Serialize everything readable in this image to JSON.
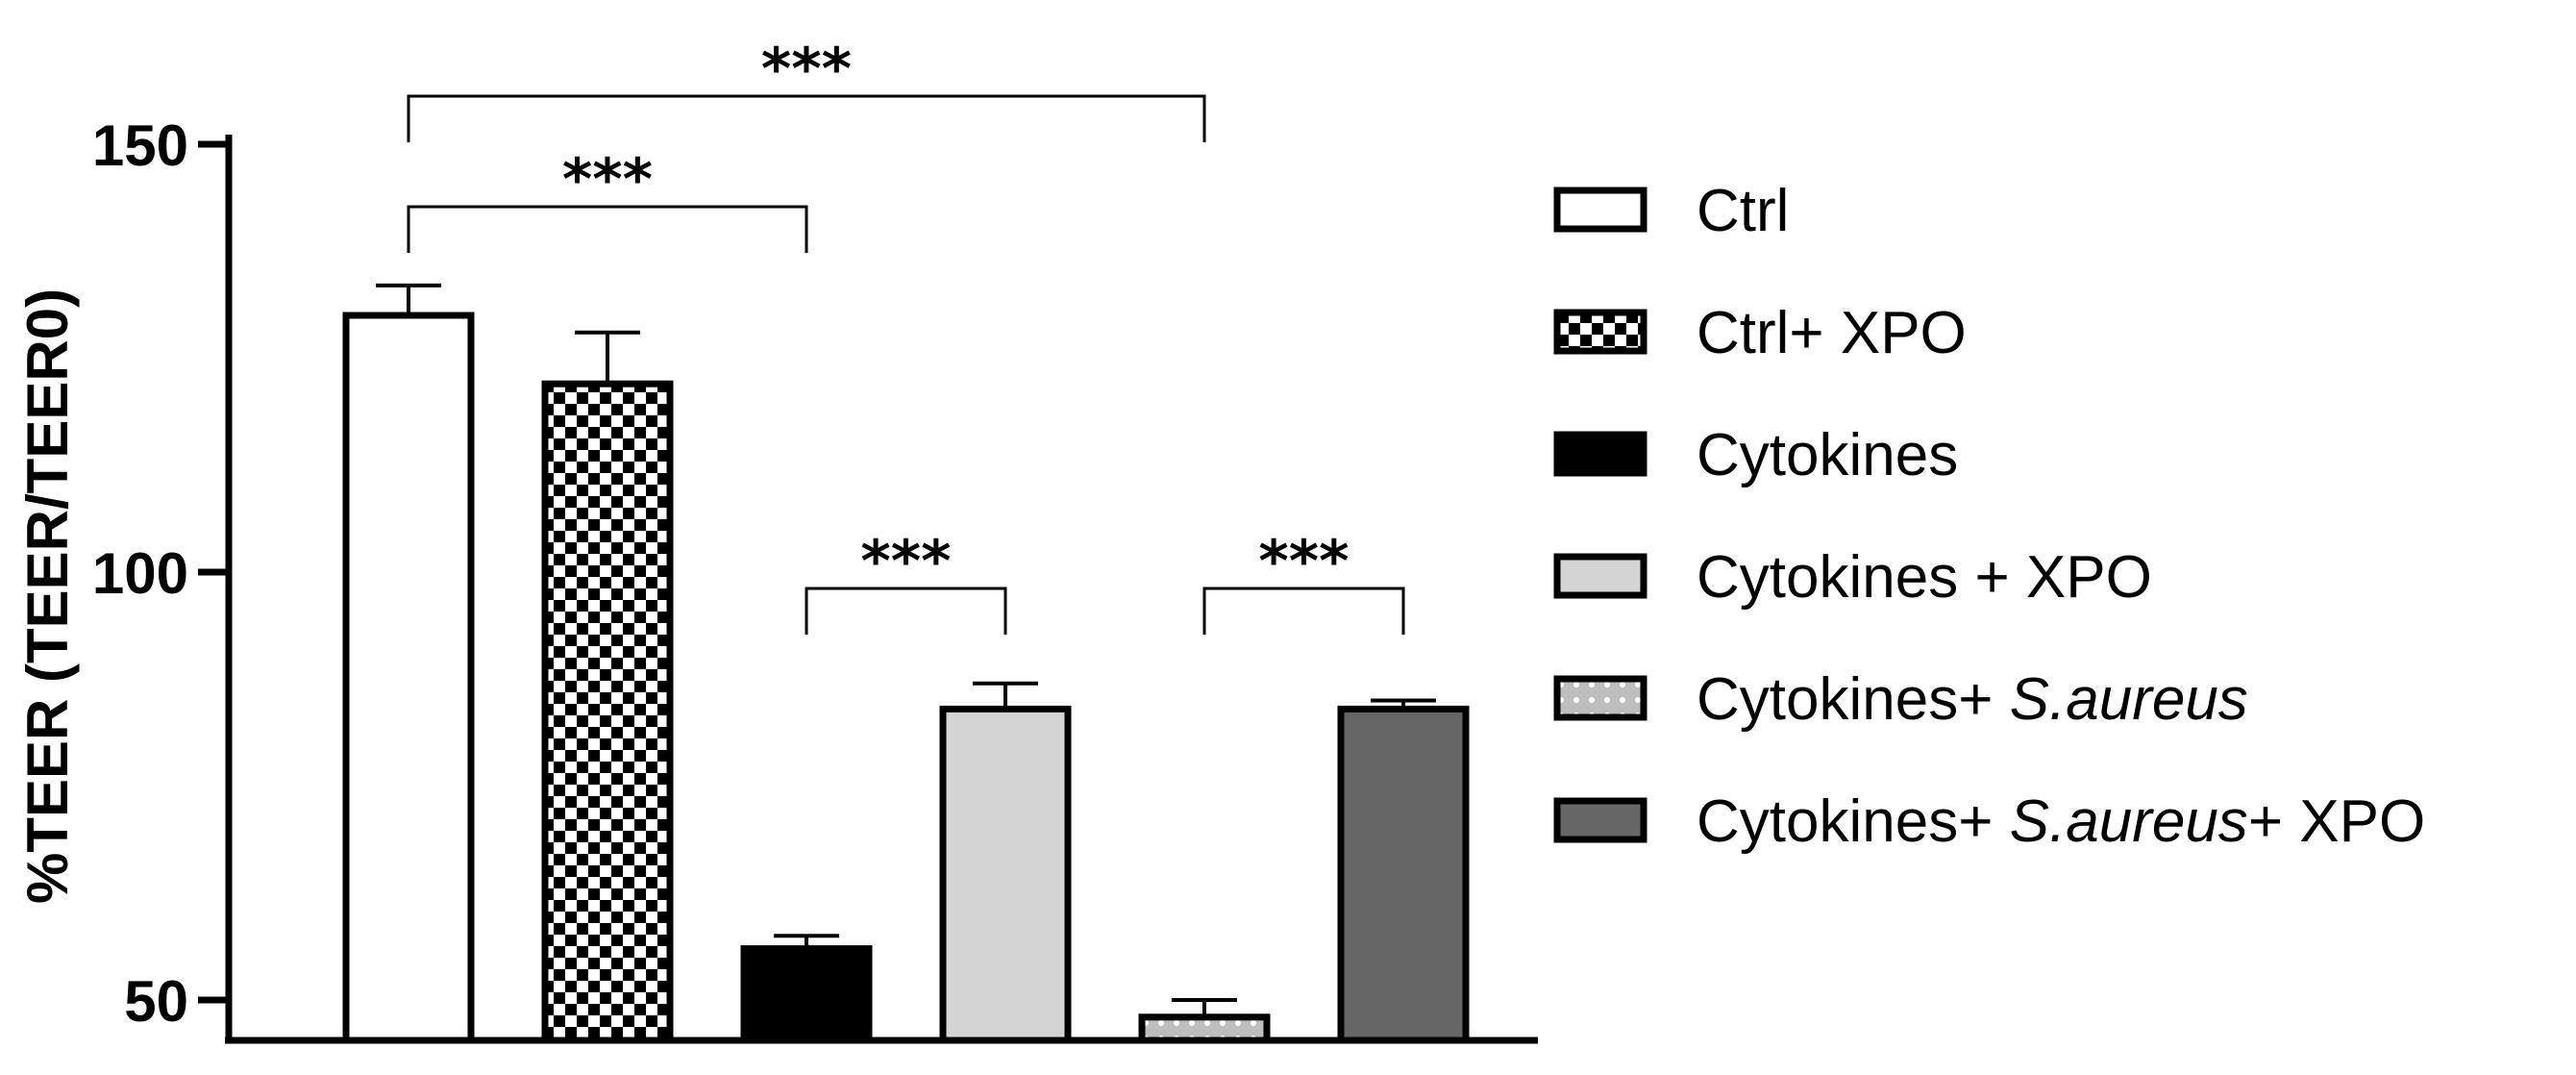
{
  "chart_data": {
    "type": "bar",
    "title": "",
    "xlabel": "",
    "ylabel": "%TEER (TEER/TEER0)",
    "ylim": [
      45,
      150
    ],
    "yticks": [
      50,
      100,
      150
    ],
    "grid": false,
    "legend_position": "right",
    "categories": [
      "Ctrl",
      "Ctrl+ XPO",
      "Cytokines",
      "Cytokines +  XPO",
      "Cytokines+ S.aureus",
      "Cytokines+ S.aureus+ XPO"
    ],
    "values": [
      130,
      122,
      56,
      84,
      48,
      84
    ],
    "errors": [
      3.5,
      6,
      1.5,
      3,
      2,
      1
    ],
    "fills": [
      "#ffffff",
      "checker",
      "#000000",
      "#d4d4d4",
      "dotted-gray",
      "#666666"
    ],
    "legend": [
      {
        "parts": [
          {
            "text": "Ctrl",
            "italic": false
          }
        ]
      },
      {
        "parts": [
          {
            "text": "Ctrl+ XPO",
            "italic": false
          }
        ]
      },
      {
        "parts": [
          {
            "text": "Cytokines",
            "italic": false
          }
        ]
      },
      {
        "parts": [
          {
            "text": "Cytokines +  XPO",
            "italic": false
          }
        ]
      },
      {
        "parts": [
          {
            "text": "Cytokines+ ",
            "italic": false
          },
          {
            "text": "S.aureus",
            "italic": true
          }
        ]
      },
      {
        "parts": [
          {
            "text": "Cytokines+ ",
            "italic": false
          },
          {
            "text": "S.aureus",
            "italic": true
          },
          {
            "text": "+ XPO",
            "italic": false
          }
        ]
      }
    ],
    "significance": [
      {
        "from": 0,
        "to": 4,
        "label": "***"
      },
      {
        "from": 0,
        "to": 2,
        "label": "***"
      },
      {
        "from": 2,
        "to": 3,
        "label": "***"
      },
      {
        "from": 4,
        "to": 5,
        "label": "***"
      }
    ]
  }
}
